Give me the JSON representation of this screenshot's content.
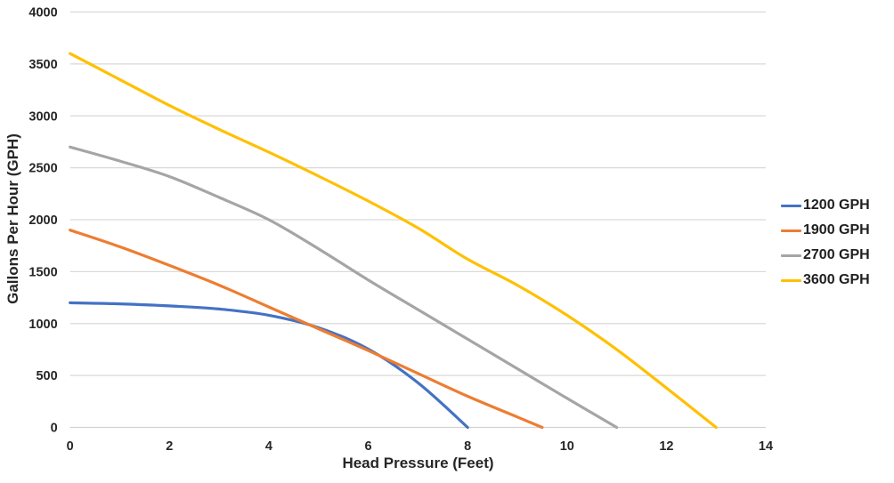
{
  "chart_data": {
    "type": "line",
    "title": "",
    "xlabel": "Head Pressure (Feet)",
    "ylabel": "Gallons Per Hour (GPH)",
    "xlim": [
      0,
      14
    ],
    "ylim": [
      0,
      4000
    ],
    "x_ticks": [
      0,
      2,
      4,
      6,
      8,
      10,
      12,
      14
    ],
    "y_ticks": [
      0,
      500,
      1000,
      1500,
      2000,
      2500,
      3000,
      3500,
      4000
    ],
    "grid": "horizontal",
    "legend_position": "right",
    "series": [
      {
        "name": "1200 GPH",
        "color": "#4472C4",
        "points": [
          [
            0,
            1200
          ],
          [
            1,
            1190
          ],
          [
            2,
            1170
          ],
          [
            3,
            1140
          ],
          [
            4,
            1080
          ],
          [
            5,
            960
          ],
          [
            6,
            755
          ],
          [
            7,
            430
          ],
          [
            8,
            0
          ]
        ]
      },
      {
        "name": "1900 GPH",
        "color": "#ED7D31",
        "points": [
          [
            0,
            1900
          ],
          [
            1,
            1740
          ],
          [
            2,
            1560
          ],
          [
            3,
            1370
          ],
          [
            4,
            1160
          ],
          [
            5,
            950
          ],
          [
            6,
            740
          ],
          [
            7,
            520
          ],
          [
            8,
            300
          ],
          [
            9,
            100
          ],
          [
            9.5,
            0
          ]
        ]
      },
      {
        "name": "2700 GPH",
        "color": "#A5A5A5",
        "points": [
          [
            0,
            2700
          ],
          [
            1,
            2565
          ],
          [
            2,
            2415
          ],
          [
            3,
            2215
          ],
          [
            4,
            2000
          ],
          [
            5,
            1720
          ],
          [
            6,
            1420
          ],
          [
            7,
            1135
          ],
          [
            8,
            850
          ],
          [
            9,
            565
          ],
          [
            10,
            280
          ],
          [
            11,
            0
          ]
        ]
      },
      {
        "name": "3600 GPH",
        "color": "#FFC000",
        "points": [
          [
            0,
            3600
          ],
          [
            1,
            3350
          ],
          [
            2,
            3100
          ],
          [
            3,
            2870
          ],
          [
            4,
            2650
          ],
          [
            5,
            2420
          ],
          [
            6,
            2180
          ],
          [
            7,
            1920
          ],
          [
            8,
            1620
          ],
          [
            9,
            1370
          ],
          [
            10,
            1080
          ],
          [
            11,
            750
          ],
          [
            12,
            380
          ],
          [
            13,
            0
          ]
        ]
      }
    ]
  },
  "colors": {
    "gridline": "#D9D9D9",
    "axis_line": "#D2D2D2",
    "tick_text": "#262626"
  }
}
